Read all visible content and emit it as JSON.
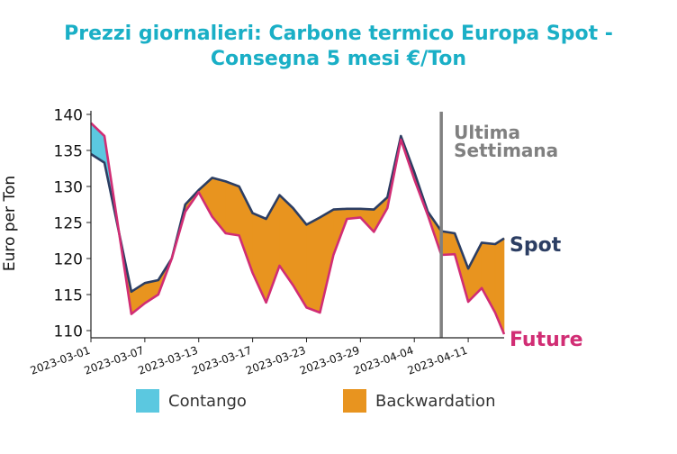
{
  "chart_data": {
    "type": "area",
    "title_line1": "Prezzi giornalieri: Carbone termico Europa Spot -",
    "title_line2": "Consegna 5 mesi €/Ton",
    "ylabel": "Euro per Ton",
    "ylim": [
      109,
      141
    ],
    "xlim_days": [
      0,
      46
    ],
    "yticks": [
      110,
      115,
      120,
      125,
      130,
      135,
      140
    ],
    "xtick_labels": [
      "2023-03-01",
      "2023-03-07",
      "2023-03-13",
      "2023-03-17",
      "2023-03-23",
      "2023-03-29",
      "2023-04-04",
      "2023-04-11"
    ],
    "xtick_days": [
      0,
      6,
      12,
      18,
      24,
      30,
      36,
      42
    ],
    "annotation": {
      "line1": "Ultima",
      "line2": "Settimana",
      "day": 39
    },
    "series": [
      {
        "name": "Spot",
        "color": "#2c3e63",
        "x": [
          0,
          1.5,
          4.5,
          6,
          7.5,
          9,
          10.5,
          12,
          13.5,
          15,
          16.5,
          18,
          19.5,
          21,
          22.5,
          24,
          25.5,
          27,
          28.5,
          30,
          31.5,
          33,
          34.5,
          36,
          37.5,
          39,
          40.5,
          42,
          43.5,
          45,
          46
        ],
        "y": [
          134.5,
          133.3,
          115.4,
          116.6,
          117,
          120,
          127.5,
          129.5,
          131.2,
          130.7,
          130,
          126.3,
          125.5,
          128.8,
          127,
          124.7,
          125.7,
          126.8,
          126.9,
          126.9,
          126.8,
          128.5,
          137,
          132,
          126.5,
          123.8,
          123.5,
          118.6,
          122.2,
          122,
          122.8
        ]
      },
      {
        "name": "Future",
        "color": "#d12d74",
        "x": [
          0,
          1.5,
          4.5,
          6,
          7.5,
          9,
          10.5,
          12,
          13.5,
          15,
          16.5,
          18,
          19.5,
          21,
          22.5,
          24,
          25.5,
          27,
          28.5,
          30,
          31.5,
          33,
          34.5,
          36,
          37.5,
          39,
          40.5,
          42,
          43.5,
          45,
          46
        ],
        "y": [
          138.8,
          137,
          112.3,
          113.8,
          115,
          120,
          126.5,
          129.2,
          125.8,
          123.5,
          123.2,
          118,
          113.9,
          119,
          116.3,
          113.2,
          112.5,
          120.5,
          125.5,
          125.7,
          123.7,
          127,
          136.5,
          131,
          126,
          120.5,
          120.6,
          114,
          115.9,
          112.5,
          109.5
        ]
      }
    ],
    "fills": [
      {
        "name": "Contango",
        "color": "#5bc8e0"
      },
      {
        "name": "Backwardation",
        "color": "#e8941f"
      }
    ]
  }
}
